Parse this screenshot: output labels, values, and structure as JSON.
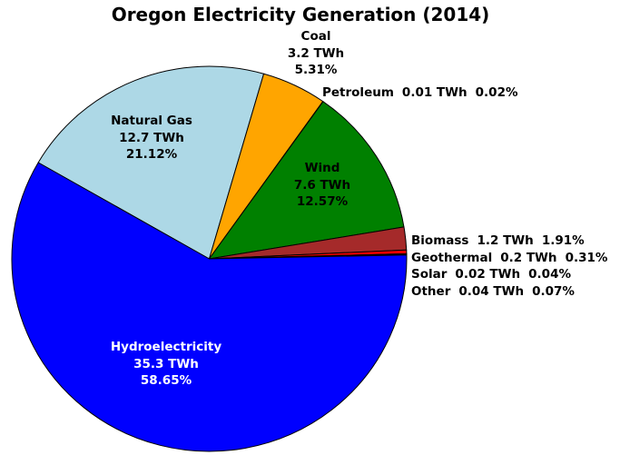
{
  "chart_data": {
    "type": "pie",
    "title": "Oregon Electricity Generation (2014)",
    "unit": "TWh",
    "start_angle_deg": 150,
    "direction": "clockwise",
    "legend_position": "labels-around-and-inside-pie",
    "outline_color": "#000000",
    "background_color": "#ffffff",
    "slices": [
      {
        "label": "Natural Gas",
        "value_twh": 12.7,
        "value_label": "12.7 TWh",
        "percent": 21.12,
        "percent_label": "21.12%",
        "color": "#add8e6",
        "label_placement": "inside"
      },
      {
        "label": "Coal",
        "value_twh": 3.2,
        "value_label": "3.2 TWh",
        "percent": 5.31,
        "percent_label": "5.31%",
        "color": "#ffa500",
        "label_placement": "outside-top"
      },
      {
        "label": "Petroleum",
        "value_twh": 0.01,
        "value_label": "0.01 TWh",
        "percent": 0.02,
        "percent_label": "0.02%",
        "color": "#aaaaaa",
        "label_placement": "outside-right"
      },
      {
        "label": "Wind",
        "value_twh": 7.6,
        "value_label": "7.6 TWh",
        "percent": 12.57,
        "percent_label": "12.57%",
        "color": "#008000",
        "label_placement": "inside"
      },
      {
        "label": "Biomass",
        "value_twh": 1.2,
        "value_label": "1.2 TWh",
        "percent": 1.91,
        "percent_label": "1.91%",
        "color": "#a52a2a",
        "label_placement": "outside-right"
      },
      {
        "label": "Geothermal",
        "value_twh": 0.2,
        "value_label": "0.2 TWh",
        "percent": 0.31,
        "percent_label": "0.31%",
        "color": "#ff0000",
        "label_placement": "outside-right"
      },
      {
        "label": "Solar",
        "value_twh": 0.02,
        "value_label": "0.02 TWh",
        "percent": 0.04,
        "percent_label": "0.04%",
        "color": "#ffff00",
        "label_placement": "outside-right"
      },
      {
        "label": "Other",
        "value_twh": 0.04,
        "value_label": "0.04 TWh",
        "percent": 0.07,
        "percent_label": "0.07%",
        "color": "#c0c0c0",
        "label_placement": "outside-right"
      },
      {
        "label": "Hydroelectricity",
        "value_twh": 35.3,
        "value_label": "35.3 TWh",
        "percent": 58.65,
        "percent_label": "58.65%",
        "color": "#0000ff",
        "label_placement": "inside"
      }
    ]
  }
}
